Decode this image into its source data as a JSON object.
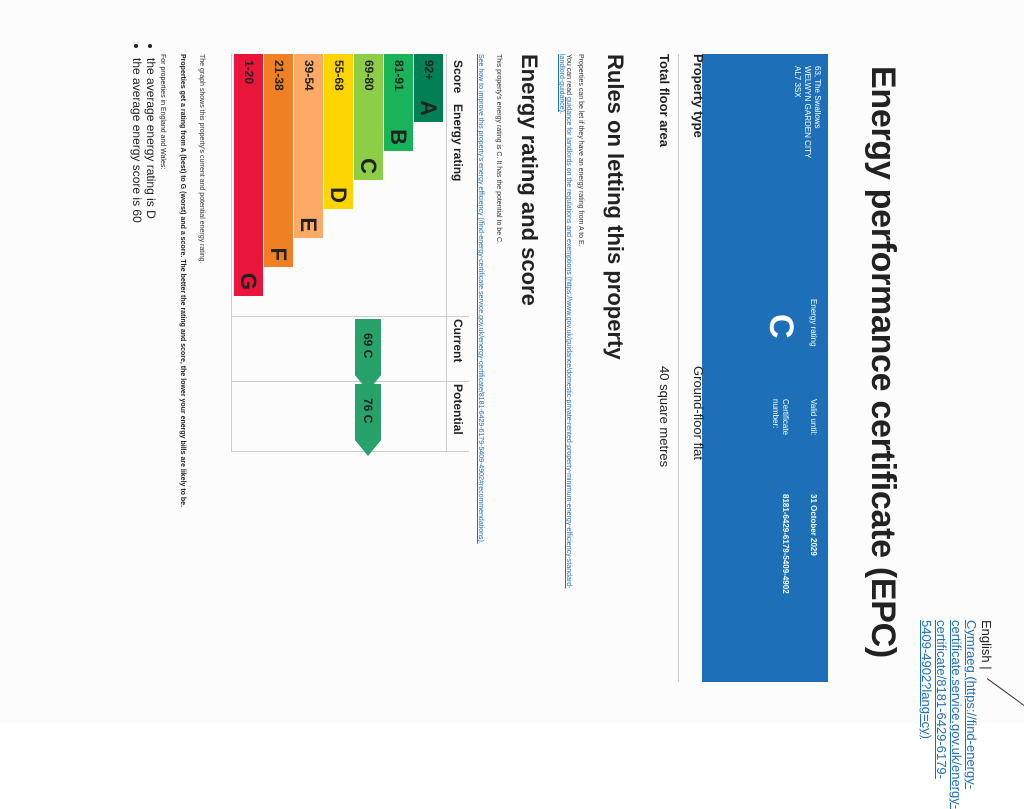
{
  "header": {
    "language_english": "English",
    "language_sep": "|",
    "language_welsh": "Cymraeg (https://find-energy-certificate.service.gov.uk/energy-certificate/8181-6429-6179-5409-4902?lang=cy)"
  },
  "title": "Energy performance certificate (EPC)",
  "summary": {
    "address": "63, The Swallows\nWELWYN GARDEN CITY\nAL7 3SX",
    "energy_rating_label": "Energy rating",
    "energy_rating": "C",
    "valid_until_label": "Valid until:",
    "valid_until": "31 October 2029",
    "cert_number_label": "Certificate number:",
    "cert_number": "8181-6429-6179-5409-4902"
  },
  "property": {
    "type_label": "Property type",
    "type_value": "Ground-floor flat",
    "area_label": "Total floor area",
    "area_value": "40 square metres"
  },
  "letting": {
    "heading": "Rules on letting this property",
    "line1": "Properties can be let if they have an energy rating from A to E.",
    "line2_prefix": "You can read ",
    "line2_link": "guidance for landlords on the regulations and exemptions (https://www.gov.uk/guidance/domestic-private-rented-property-minimum-energy-efficiency-standard-landlord-guidance)",
    "line2_suffix": "."
  },
  "rating": {
    "heading": "Energy rating and score",
    "line1": "This property's energy rating is C. It has the potential to be C.",
    "link": "See how to improve this property's energy efficiency (/find-energy-certificate.service.gov.uk/energy-certificate/8181-6429-6179-5409-4902#recommendations).",
    "caption": "The graph shows this property's current and potential energy rating.",
    "para1": "Properties get a rating from A (best) to G (worst) and a score. The better the rating and score, the lower your energy bills are likely to be.",
    "para2": "For properties in England and Wales:",
    "bullets": [
      "the average energy rating is D",
      "the average energy score is 60"
    ]
  },
  "chart_data": {
    "type": "bar",
    "headers": {
      "score": "Score",
      "rating": "Energy rating",
      "current": "Current",
      "potential": "Potential"
    },
    "bands": [
      {
        "range": "92+",
        "letter": "A",
        "color": "#008054"
      },
      {
        "range": "81-91",
        "letter": "B",
        "color": "#19b459"
      },
      {
        "range": "69-80",
        "letter": "C",
        "color": "#8dce46"
      },
      {
        "range": "55-68",
        "letter": "D",
        "color": "#ffd500"
      },
      {
        "range": "39-54",
        "letter": "E",
        "color": "#fcaa65"
      },
      {
        "range": "21-38",
        "letter": "F",
        "color": "#ef8023"
      },
      {
        "range": "1-20",
        "letter": "G",
        "color": "#e9153b"
      }
    ],
    "current": {
      "score": 69,
      "band": "C",
      "label": "69 C"
    },
    "potential": {
      "score": 76,
      "band": "C",
      "label": "76 C"
    },
    "tag_color": "#27a26a"
  }
}
